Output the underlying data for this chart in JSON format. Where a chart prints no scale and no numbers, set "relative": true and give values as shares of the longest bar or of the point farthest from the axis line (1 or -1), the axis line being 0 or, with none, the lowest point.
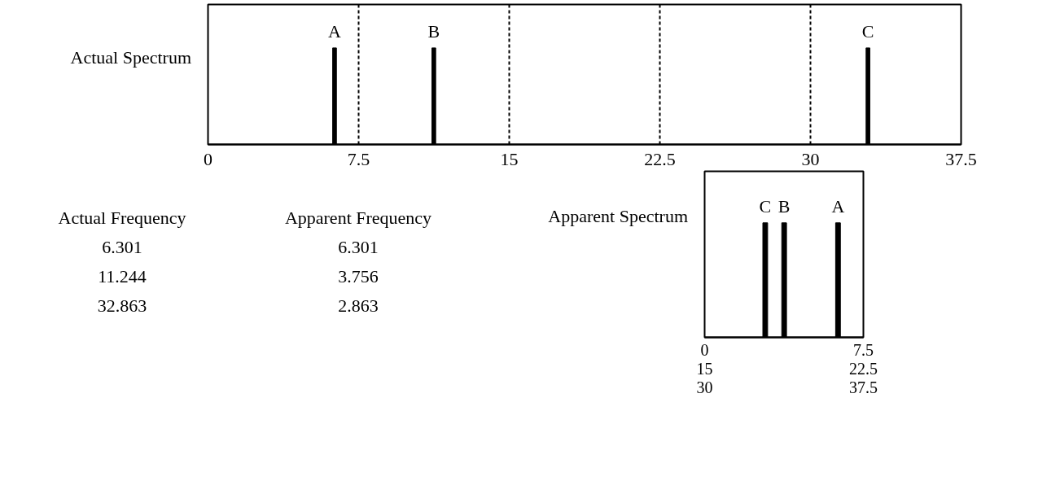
{
  "chart_data": [
    {
      "type": "bar",
      "ylabel": "Actual Spectrum",
      "x": [
        6.301,
        11.244,
        32.863
      ],
      "values": [
        1,
        1,
        1
      ],
      "relative": true,
      "color": "#000000",
      "xlim": [
        0,
        37.5
      ],
      "xticks": [
        0,
        7.5,
        15,
        22.5,
        30,
        37.5
      ],
      "tick_labels": "x",
      "grid": false,
      "ref_lines": [
        {
          "axis": "x",
          "value": 7.5,
          "line_style": "dashed"
        },
        {
          "axis": "x",
          "value": 15,
          "line_style": "dashed"
        },
        {
          "axis": "x",
          "value": 22.5,
          "line_style": "dashed"
        },
        {
          "axis": "x",
          "value": 30,
          "line_style": "dashed"
        }
      ],
      "annotations": [
        {
          "text": "A",
          "x": 6.301,
          "y": 1
        },
        {
          "text": "B",
          "x": 11.244,
          "y": 1
        },
        {
          "text": "C",
          "x": 32.863,
          "y": 1
        }
      ]
    },
    {
      "type": "other",
      "annotations": [
        "Actual Frequency",
        "6.301",
        "11.244",
        "32.863",
        "Apparent Frequency",
        "6.301",
        "3.756",
        "2.863"
      ]
    },
    {
      "type": "bar",
      "ylabel": "Apparent Spectrum",
      "x": [
        6.301,
        3.756,
        2.863
      ],
      "values": [
        1,
        1,
        1
      ],
      "relative": true,
      "color": "#000000",
      "xlim": [
        0,
        7.5
      ],
      "xticks": [
        0,
        7.5
      ],
      "x2lim": [
        15,
        22.5
      ],
      "x2ticks": [
        15,
        22.5
      ],
      "tick_labels": "x",
      "grid": false,
      "annotations": [
        {
          "text": "A",
          "x": 6.301,
          "y": 1
        },
        {
          "text": "B",
          "x": 3.756,
          "y": 1
        },
        {
          "text": "C",
          "x": 2.863,
          "y": 1
        },
        "30",
        "37.5"
      ]
    }
  ]
}
